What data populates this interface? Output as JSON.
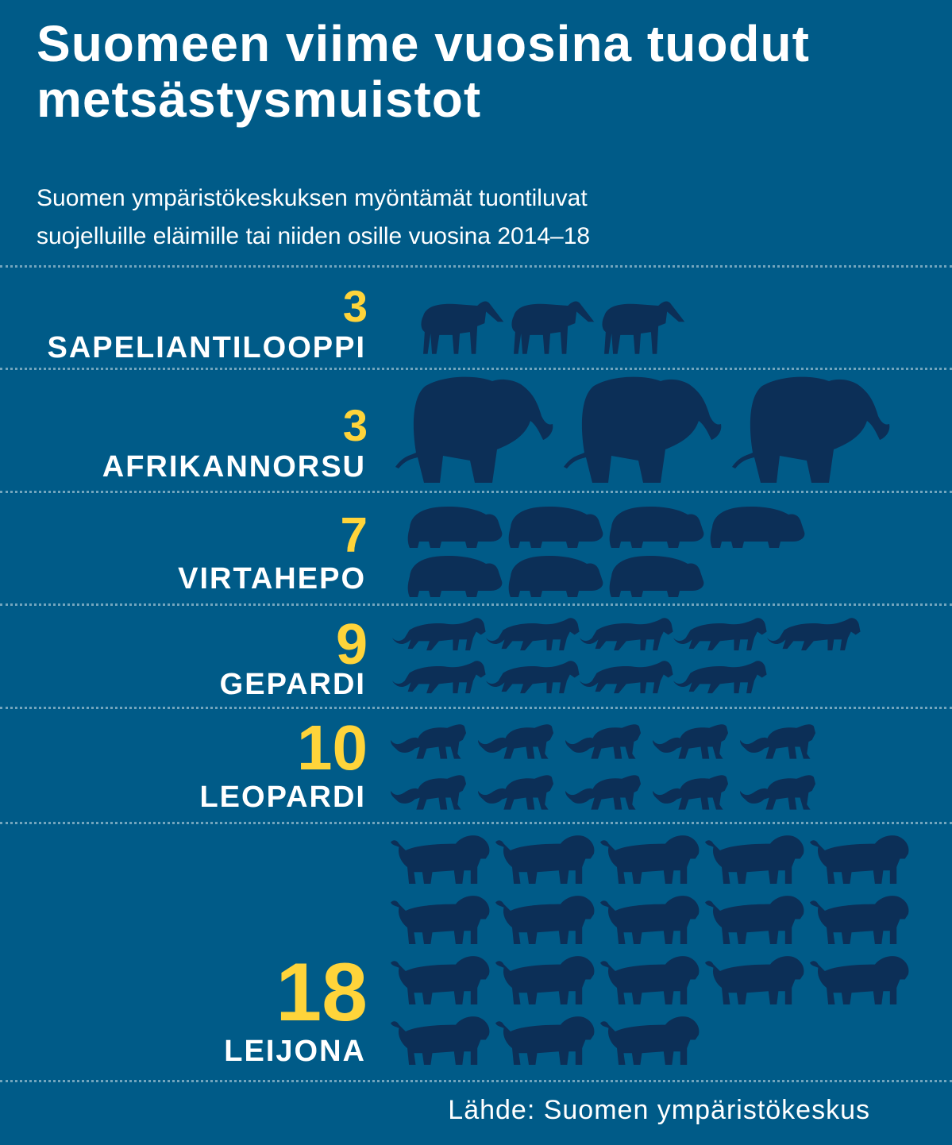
{
  "title_line1": "Suomeen viime vuosina tuodut",
  "title_line2": "metsästysmuistot",
  "subtitle_line1": "Suomen ympäristökeskuksen myöntämät tuontiluvat",
  "subtitle_line2": "suojelluille eläimille tai niiden osille vuosina 2014–18",
  "source": "Lähde: Suomen ympäristökeskus",
  "colors": {
    "background": "#005b88",
    "count": "#ffd43a",
    "icon": "#0c2f57",
    "text": "#ffffff"
  },
  "chart_data": {
    "type": "pictogram",
    "title": "Suomeen viime vuosina tuodut metsästysmuistot",
    "unit": "tuontilupa",
    "categories": [
      "SAPELIANTILOOPPI",
      "AFRIKANNORSU",
      "VIRTAHEPO",
      "GEPARDI",
      "LEOPARDI",
      "LEIJONA"
    ],
    "values": [
      3,
      3,
      7,
      9,
      10,
      18
    ],
    "icons": [
      "antelope-icon",
      "elephant-icon",
      "hippo-icon",
      "cheetah-icon",
      "leopard-icon",
      "lion-icon"
    ]
  }
}
